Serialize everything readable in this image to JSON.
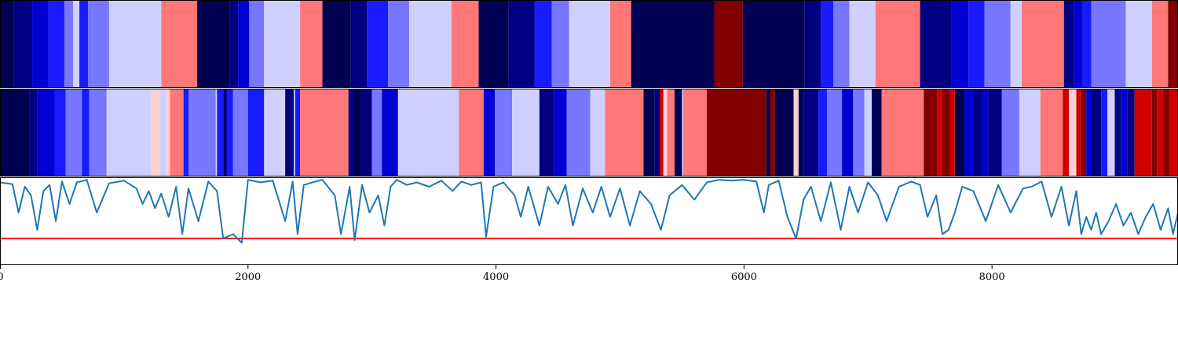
{
  "chart_data": [
    {
      "type": "heatmap",
      "row": 1,
      "xlim": [
        0,
        9500
      ],
      "colors": {
        "0": "#000050",
        "1": "#000080",
        "2": "#0000d2",
        "3": "#1a1aff",
        "4": "#7777ff",
        "5": "#d0d0ff",
        "6": "#ffd0d0",
        "7": "#ff7777",
        "8": "#d00000",
        "9": "#800000"
      },
      "segments": [
        [
          0,
          110,
          0
        ],
        [
          110,
          260,
          1
        ],
        [
          260,
          390,
          2
        ],
        [
          390,
          520,
          3
        ],
        [
          520,
          590,
          4
        ],
        [
          590,
          640,
          5
        ],
        [
          640,
          710,
          3
        ],
        [
          710,
          880,
          4
        ],
        [
          880,
          1300,
          5
        ],
        [
          1300,
          1590,
          7
        ],
        [
          1590,
          1850,
          0
        ],
        [
          1850,
          1920,
          1
        ],
        [
          1920,
          2010,
          2
        ],
        [
          2010,
          2130,
          4
        ],
        [
          2130,
          2420,
          5
        ],
        [
          2420,
          2600,
          7
        ],
        [
          2600,
          2830,
          0
        ],
        [
          2830,
          2960,
          1
        ],
        [
          2960,
          3130,
          3
        ],
        [
          3130,
          3300,
          4
        ],
        [
          3300,
          3640,
          5
        ],
        [
          3640,
          3860,
          7
        ],
        [
          3860,
          4100,
          0
        ],
        [
          4100,
          4310,
          1
        ],
        [
          4310,
          4450,
          3
        ],
        [
          4450,
          4590,
          4
        ],
        [
          4590,
          4920,
          5
        ],
        [
          4920,
          5090,
          7
        ],
        [
          5090,
          5760,
          0
        ],
        [
          5760,
          5990,
          9
        ],
        [
          5990,
          6490,
          0
        ],
        [
          6490,
          6620,
          1
        ],
        [
          6620,
          6720,
          3
        ],
        [
          6720,
          6850,
          4
        ],
        [
          6850,
          7060,
          5
        ],
        [
          7060,
          7420,
          7
        ],
        [
          7420,
          7670,
          1
        ],
        [
          7670,
          7810,
          2
        ],
        [
          7810,
          7940,
          3
        ],
        [
          7940,
          8150,
          4
        ],
        [
          8150,
          8240,
          5
        ],
        [
          8240,
          8580,
          7
        ],
        [
          8580,
          8660,
          1
        ],
        [
          8660,
          8730,
          2
        ],
        [
          8730,
          8800,
          3
        ],
        [
          8800,
          9080,
          4
        ],
        [
          9080,
          9290,
          5
        ],
        [
          9290,
          9420,
          7
        ],
        [
          9420,
          9500,
          9
        ]
      ]
    },
    {
      "type": "heatmap",
      "row": 2,
      "xlim": [
        0,
        9500
      ],
      "segments": [
        [
          0,
          240,
          0
        ],
        [
          240,
          300,
          1
        ],
        [
          300,
          440,
          2
        ],
        [
          440,
          530,
          3
        ],
        [
          530,
          660,
          4
        ],
        [
          660,
          720,
          3
        ],
        [
          720,
          860,
          4
        ],
        [
          860,
          1220,
          5
        ],
        [
          1220,
          1290,
          6
        ],
        [
          1290,
          1340,
          5
        ],
        [
          1340,
          1370,
          6
        ],
        [
          1370,
          1480,
          7
        ],
        [
          1480,
          1520,
          3
        ],
        [
          1520,
          1740,
          4
        ],
        [
          1740,
          1750,
          5
        ],
        [
          1750,
          1800,
          3
        ],
        [
          1800,
          1830,
          1
        ],
        [
          1830,
          1880,
          3
        ],
        [
          1880,
          2000,
          4
        ],
        [
          2000,
          2130,
          3
        ],
        [
          2130,
          2300,
          5
        ],
        [
          2300,
          2370,
          1
        ],
        [
          2370,
          2380,
          5
        ],
        [
          2380,
          2420,
          3
        ],
        [
          2420,
          2810,
          7
        ],
        [
          2810,
          2850,
          1
        ],
        [
          2850,
          2910,
          0
        ],
        [
          2910,
          3000,
          1
        ],
        [
          3000,
          3080,
          4
        ],
        [
          3080,
          3210,
          2
        ],
        [
          3210,
          3380,
          5
        ],
        [
          3380,
          3700,
          5
        ],
        [
          3700,
          3900,
          7
        ],
        [
          3900,
          3990,
          2
        ],
        [
          3990,
          4130,
          4
        ],
        [
          4130,
          4350,
          5
        ],
        [
          4350,
          4470,
          1
        ],
        [
          4470,
          4570,
          2
        ],
        [
          4570,
          4760,
          4
        ],
        [
          4760,
          4880,
          5
        ],
        [
          4880,
          5190,
          7
        ],
        [
          5190,
          5280,
          0
        ],
        [
          5280,
          5320,
          1
        ],
        [
          5320,
          5350,
          8
        ],
        [
          5350,
          5380,
          6
        ],
        [
          5380,
          5440,
          7
        ],
        [
          5440,
          5500,
          0
        ],
        [
          5500,
          5510,
          5
        ],
        [
          5510,
          5530,
          7
        ],
        [
          5530,
          5700,
          7
        ],
        [
          5700,
          6180,
          9
        ],
        [
          6180,
          6210,
          0
        ],
        [
          6210,
          6250,
          9
        ],
        [
          6250,
          6400,
          0
        ],
        [
          6400,
          6440,
          6
        ],
        [
          6440,
          6480,
          0
        ],
        [
          6480,
          6600,
          1
        ],
        [
          6600,
          6670,
          3
        ],
        [
          6670,
          6790,
          4
        ],
        [
          6790,
          6880,
          2
        ],
        [
          6880,
          6970,
          4
        ],
        [
          6970,
          7030,
          5
        ],
        [
          7030,
          7110,
          0
        ],
        [
          7110,
          7130,
          7
        ],
        [
          7130,
          7450,
          7
        ],
        [
          7450,
          7560,
          9
        ],
        [
          7560,
          7600,
          8
        ],
        [
          7600,
          7660,
          9
        ],
        [
          7660,
          7700,
          8
        ],
        [
          7700,
          7780,
          0
        ],
        [
          7780,
          7850,
          2
        ],
        [
          7850,
          7920,
          1
        ],
        [
          7920,
          7970,
          2
        ],
        [
          7970,
          8080,
          1
        ],
        [
          8080,
          8220,
          4
        ],
        [
          8220,
          8390,
          5
        ],
        [
          8390,
          8570,
          7
        ],
        [
          8570,
          8620,
          8
        ],
        [
          8620,
          8680,
          6
        ],
        [
          8680,
          8720,
          8
        ],
        [
          8720,
          8760,
          9
        ],
        [
          8760,
          8800,
          2
        ],
        [
          8800,
          8880,
          1
        ],
        [
          8880,
          8930,
          3
        ],
        [
          8930,
          8990,
          5
        ],
        [
          8990,
          9040,
          1
        ],
        [
          9040,
          9090,
          2
        ],
        [
          9090,
          9150,
          1
        ],
        [
          9150,
          9290,
          8
        ],
        [
          9290,
          9330,
          9
        ],
        [
          9330,
          9380,
          8
        ],
        [
          9380,
          9430,
          9
        ],
        [
          9430,
          9500,
          8
        ]
      ]
    },
    {
      "type": "line",
      "row": 3,
      "xlim": [
        0,
        9500
      ],
      "ylim": [
        0,
        1
      ],
      "xticks": [
        0,
        2000,
        4000,
        6000,
        8000
      ],
      "xticklabels": [
        "0",
        "2000",
        "4000",
        "6000",
        "8000"
      ],
      "threshold": 0.3,
      "line_color": "#1f77b4",
      "threshold_color": "#ff0000",
      "x": [
        0,
        100,
        150,
        200,
        250,
        300,
        350,
        400,
        450,
        500,
        560,
        620,
        700,
        780,
        880,
        1000,
        1100,
        1150,
        1200,
        1250,
        1300,
        1360,
        1420,
        1470,
        1520,
        1600,
        1680,
        1750,
        1800,
        1880,
        1950,
        2000,
        2100,
        2200,
        2300,
        2360,
        2400,
        2450,
        2520,
        2600,
        2700,
        2750,
        2820,
        2860,
        2920,
        2980,
        3050,
        3100,
        3150,
        3200,
        3280,
        3360,
        3460,
        3560,
        3650,
        3720,
        3800,
        3880,
        3920,
        3980,
        4060,
        4150,
        4200,
        4260,
        4350,
        4420,
        4500,
        4560,
        4620,
        4700,
        4780,
        4850,
        4920,
        5000,
        5080,
        5160,
        5250,
        5330,
        5400,
        5500,
        5600,
        5700,
        5800,
        5900,
        6000,
        6100,
        6160,
        6200,
        6280,
        6350,
        6420,
        6480,
        6540,
        6620,
        6700,
        6780,
        6850,
        6920,
        7000,
        7080,
        7150,
        7250,
        7350,
        7420,
        7480,
        7550,
        7600,
        7650,
        7700,
        7760,
        7850,
        7950,
        8050,
        8150,
        8250,
        8320,
        8400,
        8480,
        8560,
        8620,
        8680,
        8720,
        8760,
        8800,
        8840,
        8880,
        8940,
        9000,
        9060,
        9120,
        9180,
        9240,
        9300,
        9360,
        9420,
        9460,
        9500
      ],
      "y": [
        0.95,
        0.93,
        0.6,
        0.9,
        0.8,
        0.4,
        0.85,
        0.92,
        0.5,
        0.96,
        0.7,
        0.95,
        0.98,
        0.6,
        0.94,
        0.97,
        0.88,
        0.7,
        0.85,
        0.65,
        0.82,
        0.55,
        0.9,
        0.35,
        0.88,
        0.5,
        0.96,
        0.85,
        0.3,
        0.35,
        0.25,
        0.98,
        0.95,
        0.97,
        0.5,
        0.96,
        0.35,
        0.92,
        0.95,
        0.98,
        0.8,
        0.35,
        0.9,
        0.28,
        0.92,
        0.6,
        0.8,
        0.45,
        0.9,
        0.98,
        0.92,
        0.95,
        0.9,
        0.97,
        0.85,
        0.96,
        0.92,
        0.95,
        0.32,
        0.9,
        0.95,
        0.8,
        0.55,
        0.9,
        0.45,
        0.9,
        0.7,
        0.92,
        0.45,
        0.88,
        0.6,
        0.9,
        0.55,
        0.88,
        0.45,
        0.85,
        0.7,
        0.4,
        0.8,
        0.92,
        0.75,
        0.95,
        0.98,
        0.97,
        0.98,
        0.96,
        0.6,
        0.92,
        0.97,
        0.55,
        0.3,
        0.75,
        0.9,
        0.5,
        0.95,
        0.4,
        0.9,
        0.6,
        0.95,
        0.8,
        0.5,
        0.9,
        0.96,
        0.92,
        0.55,
        0.8,
        0.35,
        0.4,
        0.6,
        0.9,
        0.85,
        0.5,
        0.92,
        0.6,
        0.88,
        0.9,
        0.96,
        0.55,
        0.9,
        0.45,
        0.85,
        0.35,
        0.55,
        0.4,
        0.6,
        0.35,
        0.5,
        0.7,
        0.45,
        0.6,
        0.35,
        0.55,
        0.7,
        0.4,
        0.65,
        0.35,
        0.6
      ]
    }
  ]
}
